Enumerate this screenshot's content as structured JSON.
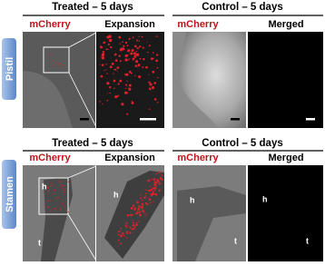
{
  "rows": [
    {
      "label": "Pistil",
      "treated": {
        "title": "Treated – 5 days",
        "panels": [
          "mCherry",
          "Expansion"
        ]
      },
      "control": {
        "title": "Control – 5 days",
        "panels": [
          "mCherry",
          "Merged"
        ]
      }
    },
    {
      "label": "Stamen",
      "treated": {
        "title": "Treated – 5 days",
        "panels": [
          "mCherry",
          "Expansion"
        ],
        "image_labels": [
          "h",
          "t",
          "h"
        ]
      },
      "control": {
        "title": "Control  – 5 days",
        "panels": [
          "mCherry",
          "Merged"
        ],
        "image_labels": [
          "h",
          "t",
          "h",
          "t"
        ]
      }
    }
  ]
}
